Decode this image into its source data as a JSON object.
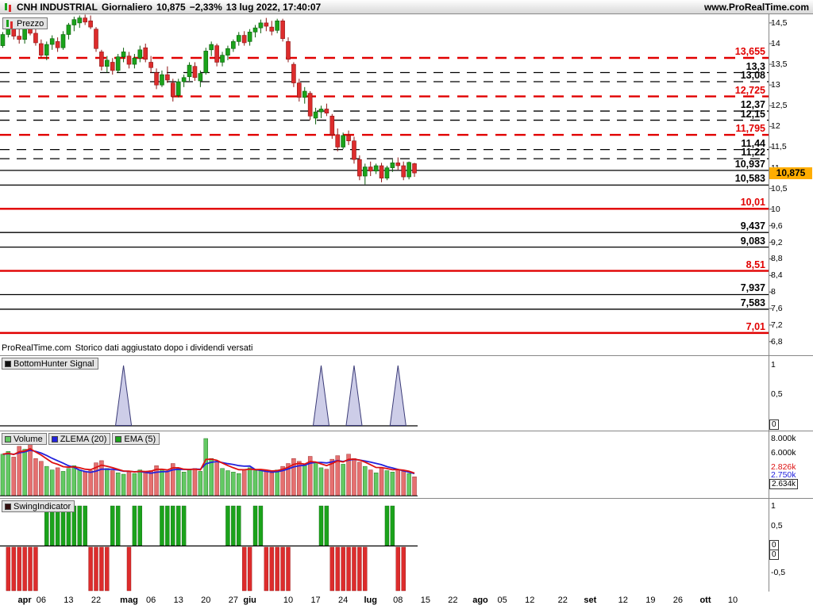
{
  "title_bar": {
    "instrument": "CNH INDUSTRIAL",
    "timeframe": "Giornaliero",
    "last_price": "10,875",
    "change": "−2,33%",
    "datetime": "13 lug 2022, 17:40:07",
    "website": "www.ProRealTime.com"
  },
  "panels": {
    "price": {
      "legend": "Prezzo",
      "footnote_brand": "ProRealTime.com",
      "footnote_text": "Storico dati aggiustato dopo i dividendi versati",
      "current_price_label": "10,875"
    },
    "bottomhunter": {
      "legend": "BottomHunter Signal",
      "axis": [
        "1",
        "0,5",
        "0"
      ]
    },
    "volume": {
      "legend_volume": "Volume",
      "legend_zlema": "ZLEMA (20)",
      "legend_ema": "EMA (5)",
      "gridline_labels": [
        "8.000k",
        "6.000k"
      ],
      "ema_last": "2.826k",
      "zlema_last": "2.750k",
      "volume_last": "2.634k"
    },
    "swing": {
      "legend": "SwingIndicator",
      "axis": [
        "1",
        "0,5",
        "0",
        "0",
        "-0,5"
      ]
    }
  },
  "colors": {
    "up": "#1BA31B",
    "up_border": "#0A5E0A",
    "down": "#DD2C2C",
    "down_border": "#8E1414",
    "level_red": "#E10000",
    "level_black": "#000000",
    "ema": "#DD1111",
    "zlema": "#2222DD",
    "volume_up": "#63C963",
    "volume_down": "#E57070",
    "spike_fill": "#CDCDE8",
    "spike_stroke": "#3C3C78",
    "badge_bg": "#FFAD00"
  },
  "y_axis_ticks": [
    {
      "label": "14,5",
      "value": 14.5
    },
    {
      "label": "14",
      "value": 14
    },
    {
      "label": "13,5",
      "value": 13.5
    },
    {
      "label": "13",
      "value": 13
    },
    {
      "label": "12,5",
      "value": 12.5
    },
    {
      "label": "12",
      "value": 12
    },
    {
      "label": "11,5",
      "value": 11.5
    },
    {
      "label": "11",
      "value": 11
    },
    {
      "label": "10,5",
      "value": 10.5
    },
    {
      "label": "10",
      "value": 10
    },
    {
      "label": "9,6",
      "value": 9.6
    },
    {
      "label": "9,2",
      "value": 9.2
    },
    {
      "label": "8,8",
      "value": 8.8
    },
    {
      "label": "8,4",
      "value": 8.4
    },
    {
      "label": "8",
      "value": 8
    },
    {
      "label": "7,6",
      "value": 7.6
    },
    {
      "label": "7,2",
      "value": 7.2
    },
    {
      "label": "6,8",
      "value": 6.8
    }
  ],
  "x_axis_ticks": [
    {
      "label": "apr",
      "slot": 4,
      "month": true
    },
    {
      "label": "06",
      "slot": 7
    },
    {
      "label": "13",
      "slot": 12
    },
    {
      "label": "22",
      "slot": 17
    },
    {
      "label": "mag",
      "slot": 23,
      "month": true
    },
    {
      "label": "06",
      "slot": 27
    },
    {
      "label": "13",
      "slot": 32
    },
    {
      "label": "20",
      "slot": 37
    },
    {
      "label": "27",
      "slot": 42
    },
    {
      "label": "giu",
      "slot": 45,
      "month": true
    },
    {
      "label": "10",
      "slot": 52
    },
    {
      "label": "17",
      "slot": 57
    },
    {
      "label": "24",
      "slot": 62
    },
    {
      "label": "lug",
      "slot": 67,
      "month": true
    },
    {
      "label": "08",
      "slot": 72
    },
    {
      "label": "15",
      "slot": 77
    },
    {
      "label": "22",
      "slot": 82
    },
    {
      "label": "ago",
      "slot": 87,
      "month": true
    },
    {
      "label": "05",
      "slot": 91
    },
    {
      "label": "12",
      "slot": 96
    },
    {
      "label": "22",
      "slot": 102
    },
    {
      "label": "set",
      "slot": 107,
      "month": true
    },
    {
      "label": "12",
      "slot": 113
    },
    {
      "label": "19",
      "slot": 118
    },
    {
      "label": "26",
      "slot": 123
    },
    {
      "label": "ott",
      "slot": 128,
      "month": true
    },
    {
      "label": "10",
      "slot": 133
    }
  ],
  "chart_data": {
    "type": "candlestick",
    "title": "CNH INDUSTRIAL Giornaliero",
    "visible_slots": 140,
    "price_ylim": [
      6.5,
      14.72
    ],
    "volume_ylim_k": [
      0,
      8000
    ],
    "levels": [
      {
        "label": "13,655",
        "value": 13.655,
        "color": "red",
        "style": "dashed"
      },
      {
        "label": "13,3",
        "value": 13.3,
        "color": "black",
        "style": "dashed"
      },
      {
        "label": "13,08",
        "value": 13.08,
        "color": "black",
        "style": "dashed"
      },
      {
        "label": "12,725",
        "value": 12.725,
        "color": "red",
        "style": "dashed"
      },
      {
        "label": "12,37",
        "value": 12.37,
        "color": "black",
        "style": "dashed"
      },
      {
        "label": "12,15",
        "value": 12.15,
        "color": "black",
        "style": "dashed"
      },
      {
        "label": "11,795",
        "value": 11.795,
        "color": "red",
        "style": "dashed"
      },
      {
        "label": "11,44",
        "value": 11.44,
        "color": "black",
        "style": "dashed"
      },
      {
        "label": "11,22",
        "value": 11.22,
        "color": "black",
        "style": "dashed"
      },
      {
        "label": "10,937",
        "value": 10.937,
        "color": "black",
        "style": "solid"
      },
      {
        "label": "10,583",
        "value": 10.583,
        "color": "black",
        "style": "solid"
      },
      {
        "label": "10,01",
        "value": 10.01,
        "color": "red",
        "style": "solid"
      },
      {
        "label": "9,437",
        "value": 9.437,
        "color": "black",
        "style": "solid"
      },
      {
        "label": "9,083",
        "value": 9.083,
        "color": "black",
        "style": "solid"
      },
      {
        "label": "8,51",
        "value": 8.51,
        "color": "red",
        "style": "solid"
      },
      {
        "label": "7,937",
        "value": 7.937,
        "color": "black",
        "style": "solid"
      },
      {
        "label": "7,583",
        "value": 7.583,
        "color": "black",
        "style": "solid"
      },
      {
        "label": "7,01",
        "value": 7.01,
        "color": "red",
        "style": "solid"
      }
    ],
    "candle_fields": [
      "date",
      "open",
      "high",
      "low",
      "close",
      "volume_k",
      "swing"
    ],
    "candles": [
      [
        "2022-03-28",
        13.95,
        14.28,
        13.9,
        14.22,
        5800,
        0
      ],
      [
        "2022-03-29",
        14.22,
        14.55,
        14.15,
        14.45,
        6200,
        -1
      ],
      [
        "2022-03-30",
        14.45,
        14.5,
        14.1,
        14.18,
        5400,
        -1
      ],
      [
        "2022-03-31",
        14.18,
        14.35,
        14.0,
        14.1,
        6900,
        -1
      ],
      [
        "2022-04-01",
        14.1,
        14.45,
        14.0,
        14.38,
        6500,
        -1
      ],
      [
        "2022-04-04",
        14.38,
        14.6,
        14.2,
        14.25,
        7200,
        -1
      ],
      [
        "2022-04-05",
        14.25,
        14.35,
        13.95,
        14.02,
        5200,
        -1
      ],
      [
        "2022-04-06",
        14.0,
        14.1,
        13.65,
        13.72,
        4800,
        0
      ],
      [
        "2022-04-07",
        13.72,
        14.05,
        13.6,
        13.98,
        4100,
        1
      ],
      [
        "2022-04-08",
        13.98,
        14.2,
        13.85,
        14.12,
        3600,
        1
      ],
      [
        "2022-04-11",
        14.05,
        14.15,
        13.8,
        13.9,
        3900,
        1
      ],
      [
        "2022-04-12",
        13.9,
        14.3,
        13.85,
        14.22,
        3400,
        1
      ],
      [
        "2022-04-13",
        14.22,
        14.5,
        14.1,
        14.45,
        3800,
        1
      ],
      [
        "2022-04-14",
        14.45,
        14.65,
        14.3,
        14.58,
        4200,
        1
      ],
      [
        "2022-04-19",
        14.5,
        14.68,
        14.38,
        14.62,
        3600,
        1
      ],
      [
        "2022-04-20",
        14.62,
        14.7,
        14.45,
        14.52,
        3300,
        1
      ],
      [
        "2022-04-21",
        14.55,
        14.68,
        14.35,
        14.4,
        3500,
        -1
      ],
      [
        "2022-04-22",
        14.35,
        14.4,
        13.8,
        13.88,
        4600,
        -1
      ],
      [
        "2022-04-25",
        13.8,
        13.85,
        13.35,
        13.45,
        4900,
        -1
      ],
      [
        "2022-04-26",
        13.45,
        13.7,
        13.3,
        13.6,
        3800,
        -1
      ],
      [
        "2022-04-27",
        13.55,
        13.65,
        13.25,
        13.35,
        3500,
        1
      ],
      [
        "2022-04-28",
        13.35,
        13.75,
        13.3,
        13.68,
        3200,
        1
      ],
      [
        "2022-04-29",
        13.68,
        13.9,
        13.55,
        13.8,
        3000,
        0
      ],
      [
        "2022-05-02",
        13.7,
        13.8,
        13.4,
        13.5,
        3400,
        -1
      ],
      [
        "2022-05-03",
        13.5,
        13.75,
        13.4,
        13.65,
        3100,
        1
      ],
      [
        "2022-05-04",
        13.65,
        13.95,
        13.55,
        13.85,
        3600,
        1
      ],
      [
        "2022-05-05",
        13.9,
        14.0,
        13.55,
        13.62,
        3300,
        0
      ],
      [
        "2022-05-06",
        13.55,
        13.7,
        13.3,
        13.42,
        3500,
        0
      ],
      [
        "2022-05-09",
        13.3,
        13.4,
        12.9,
        13.0,
        4200,
        0
      ],
      [
        "2022-05-10",
        13.0,
        13.35,
        12.95,
        13.25,
        3700,
        1
      ],
      [
        "2022-05-11",
        13.25,
        13.45,
        13.05,
        13.12,
        3400,
        1
      ],
      [
        "2022-05-12",
        13.05,
        13.15,
        12.6,
        12.72,
        4500,
        1
      ],
      [
        "2022-05-13",
        12.75,
        13.15,
        12.7,
        13.08,
        3900,
        1
      ],
      [
        "2022-05-16",
        13.08,
        13.25,
        12.95,
        13.18,
        3300,
        1
      ],
      [
        "2022-05-17",
        13.2,
        13.55,
        13.1,
        13.48,
        3600,
        0
      ],
      [
        "2022-05-18",
        13.45,
        13.55,
        13.1,
        13.18,
        3800,
        0
      ],
      [
        "2022-05-19",
        13.1,
        13.35,
        12.95,
        13.28,
        3400,
        0
      ],
      [
        "2022-05-20",
        13.3,
        13.9,
        13.25,
        13.82,
        8000,
        0
      ],
      [
        "2022-05-23",
        13.85,
        14.05,
        13.7,
        13.98,
        5200,
        0
      ],
      [
        "2022-05-24",
        13.95,
        14.0,
        13.45,
        13.55,
        4600,
        0
      ],
      [
        "2022-05-25",
        13.55,
        13.8,
        13.45,
        13.72,
        3800,
        0
      ],
      [
        "2022-05-26",
        13.72,
        13.95,
        13.6,
        13.88,
        3500,
        1
      ],
      [
        "2022-05-27",
        13.88,
        14.1,
        13.8,
        14.05,
        3300,
        1
      ],
      [
        "2022-05-30",
        14.05,
        14.28,
        13.95,
        14.2,
        3100,
        1
      ],
      [
        "2022-05-31",
        14.2,
        14.3,
        13.95,
        14.02,
        3600,
        -1
      ],
      [
        "2022-06-01",
        14.05,
        14.35,
        13.95,
        14.28,
        3900,
        -1
      ],
      [
        "2022-06-02",
        14.28,
        14.45,
        14.15,
        14.38,
        3500,
        1
      ],
      [
        "2022-06-03",
        14.38,
        14.58,
        14.25,
        14.5,
        3700,
        1
      ],
      [
        "2022-06-06",
        14.5,
        14.62,
        14.3,
        14.42,
        3400,
        -1
      ],
      [
        "2022-06-07",
        14.4,
        14.55,
        14.2,
        14.3,
        3200,
        -1
      ],
      [
        "2022-06-08",
        14.32,
        14.6,
        14.25,
        14.55,
        3600,
        -1
      ],
      [
        "2022-06-09",
        14.55,
        14.6,
        14.05,
        14.12,
        4100,
        -1
      ],
      [
        "2022-06-10",
        14.05,
        14.15,
        13.55,
        13.62,
        4500,
        -1
      ],
      [
        "2022-06-13",
        13.5,
        13.55,
        12.95,
        13.05,
        5200,
        0
      ],
      [
        "2022-06-14",
        13.05,
        13.15,
        12.6,
        12.7,
        4800,
        0
      ],
      [
        "2022-06-15",
        12.7,
        12.95,
        12.55,
        12.85,
        4200,
        0
      ],
      [
        "2022-06-16",
        12.8,
        12.85,
        12.15,
        12.25,
        5500,
        0
      ],
      [
        "2022-06-17",
        12.2,
        12.45,
        12.05,
        12.35,
        4600,
        0
      ],
      [
        "2022-06-20",
        12.35,
        12.5,
        12.2,
        12.42,
        3900,
        1
      ],
      [
        "2022-06-21",
        12.42,
        12.55,
        12.25,
        12.32,
        3700,
        1
      ],
      [
        "2022-06-22",
        12.25,
        12.3,
        11.7,
        11.8,
        5100,
        -1
      ],
      [
        "2022-06-23",
        11.8,
        11.95,
        11.4,
        11.5,
        5600,
        -1
      ],
      [
        "2022-06-24",
        11.5,
        11.85,
        11.45,
        11.78,
        4400,
        -1
      ],
      [
        "2022-06-27",
        11.78,
        11.9,
        11.55,
        11.65,
        5800,
        -1
      ],
      [
        "2022-06-28",
        11.65,
        11.75,
        11.1,
        11.2,
        5200,
        -1
      ],
      [
        "2022-06-29",
        11.2,
        11.3,
        10.7,
        10.8,
        4700,
        -1
      ],
      [
        "2022-06-30",
        10.8,
        11.1,
        10.6,
        11.02,
        4100,
        -1
      ],
      [
        "2022-07-01",
        11.02,
        11.15,
        10.8,
        10.92,
        3600,
        0
      ],
      [
        "2022-07-04",
        10.92,
        11.1,
        10.85,
        11.05,
        3200,
        0
      ],
      [
        "2022-07-05",
        11.05,
        11.12,
        10.65,
        10.75,
        3900,
        0
      ],
      [
        "2022-07-06",
        10.75,
        11.05,
        10.7,
        11.0,
        3500,
        1
      ],
      [
        "2022-07-07",
        11.0,
        11.2,
        10.9,
        11.12,
        3300,
        1
      ],
      [
        "2022-07-08",
        11.12,
        11.25,
        10.95,
        11.05,
        3700,
        -1
      ],
      [
        "2022-07-11",
        11.05,
        11.15,
        10.7,
        10.78,
        3400,
        -1
      ],
      [
        "2022-07-12",
        10.78,
        11.15,
        10.72,
        11.13,
        3100,
        0
      ],
      [
        "2022-07-13",
        11.1,
        11.12,
        10.78,
        10.875,
        2634,
        0
      ]
    ],
    "bottomhunter": {
      "ylim": [
        0,
        1
      ],
      "spike_slots": [
        22,
        58,
        64,
        72
      ]
    },
    "swing": {
      "up_value": 1,
      "down_value": -1
    }
  }
}
